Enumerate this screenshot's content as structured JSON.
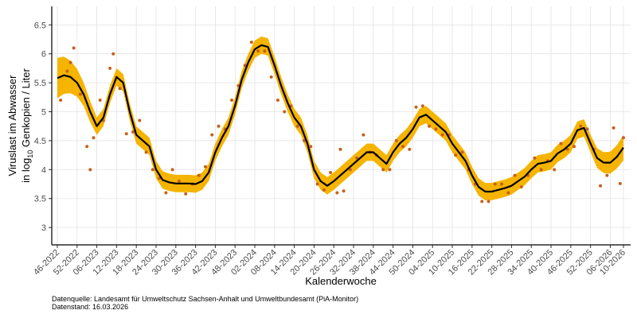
{
  "chart_data": {
    "type": "line",
    "x_label": "Kalenderwoche",
    "y_label": {
      "line1": "Viruslast im Abwasser",
      "line2_pre": "in  log",
      "line2_sub": "10",
      "line2_post": " Genkopien / Liter"
    },
    "xlim": [
      -1.69,
      174.18
    ],
    "ylim": [
      2.7,
      6.82
    ],
    "xticks": [
      {
        "value": 0,
        "label": "46-2022"
      },
      {
        "value": 6,
        "label": "52-2022"
      },
      {
        "value": 12,
        "label": "06-2023"
      },
      {
        "value": 18,
        "label": "12-2023"
      },
      {
        "value": 24,
        "label": "18-2023"
      },
      {
        "value": 30,
        "label": "24-2023"
      },
      {
        "value": 36,
        "label": "30-2023"
      },
      {
        "value": 42,
        "label": "36-2023"
      },
      {
        "value": 48,
        "label": "42-2023"
      },
      {
        "value": 54,
        "label": "48-2023"
      },
      {
        "value": 60,
        "label": "02-2024"
      },
      {
        "value": 66,
        "label": "08-2024"
      },
      {
        "value": 72,
        "label": "14-2024"
      },
      {
        "value": 78,
        "label": "20-2024"
      },
      {
        "value": 84,
        "label": "26-2024"
      },
      {
        "value": 90,
        "label": "32-2024"
      },
      {
        "value": 96,
        "label": "38-2024"
      },
      {
        "value": 102,
        "label": "44-2024"
      },
      {
        "value": 108,
        "label": "50-2024"
      },
      {
        "value": 114,
        "label": "04-2025"
      },
      {
        "value": 120,
        "label": "10-2025"
      },
      {
        "value": 126,
        "label": "16-2025"
      },
      {
        "value": 132,
        "label": "22-2025"
      },
      {
        "value": 138,
        "label": "28-2025"
      },
      {
        "value": 144,
        "label": "34-2025"
      },
      {
        "value": 150,
        "label": "40-2025"
      },
      {
        "value": 156,
        "label": "46-2025"
      },
      {
        "value": 162,
        "label": "52-2025"
      },
      {
        "value": 168,
        "label": "06-2026"
      },
      {
        "value": 172,
        "label": "10-2026"
      }
    ],
    "yticks": [
      3,
      3.5,
      4,
      4.5,
      5,
      5.5,
      6,
      6.5
    ],
    "grid": true,
    "fit": {
      "color": "#000000",
      "x": [
        0,
        2,
        4,
        6,
        8,
        10,
        12,
        14,
        16,
        18,
        20,
        22,
        24,
        26,
        28,
        30,
        32,
        34,
        36,
        38,
        40,
        42,
        44,
        46,
        48,
        50,
        52,
        54,
        56,
        58,
        60,
        62,
        64,
        66,
        68,
        70,
        72,
        74,
        76,
        78,
        80,
        82,
        84,
        86,
        88,
        90,
        92,
        94,
        96,
        98,
        100,
        102,
        104,
        106,
        108,
        110,
        112,
        114,
        116,
        118,
        120,
        122,
        124,
        126,
        128,
        130,
        132,
        134,
        136,
        138,
        140,
        142,
        144,
        146,
        148,
        150,
        152,
        154,
        156,
        158,
        160,
        162,
        164,
        166,
        168,
        170,
        172
      ],
      "values": [
        5.58,
        5.63,
        5.6,
        5.5,
        5.3,
        5.0,
        4.75,
        4.9,
        5.3,
        5.6,
        5.5,
        5.0,
        4.6,
        4.5,
        4.4,
        4.0,
        3.82,
        3.78,
        3.76,
        3.76,
        3.76,
        3.75,
        3.8,
        3.95,
        4.3,
        4.55,
        4.75,
        5.1,
        5.55,
        5.85,
        6.08,
        6.15,
        6.12,
        5.8,
        5.45,
        5.15,
        4.9,
        4.75,
        4.45,
        4.0,
        3.8,
        3.72,
        3.8,
        3.9,
        4.0,
        4.1,
        4.2,
        4.3,
        4.3,
        4.2,
        4.1,
        4.3,
        4.45,
        4.55,
        4.7,
        4.9,
        4.95,
        4.85,
        4.75,
        4.65,
        4.45,
        4.3,
        4.15,
        3.9,
        3.7,
        3.62,
        3.62,
        3.65,
        3.68,
        3.72,
        3.8,
        3.88,
        4.0,
        4.1,
        4.12,
        4.15,
        4.28,
        4.35,
        4.45,
        4.68,
        4.72,
        4.45,
        4.2,
        4.12,
        4.12,
        4.22,
        4.38
      ]
    },
    "band": {
      "color": "#f5b400",
      "upper": [
        5.93,
        5.95,
        5.88,
        5.74,
        5.5,
        5.18,
        4.9,
        5.05,
        5.45,
        5.75,
        5.65,
        5.15,
        4.75,
        4.65,
        4.55,
        4.15,
        3.97,
        3.93,
        3.91,
        3.91,
        3.91,
        3.9,
        3.95,
        4.1,
        4.45,
        4.7,
        4.9,
        5.25,
        5.7,
        6.0,
        6.23,
        6.3,
        6.27,
        5.95,
        5.6,
        5.3,
        5.05,
        4.9,
        4.6,
        4.15,
        3.95,
        3.87,
        3.95,
        4.05,
        4.15,
        4.25,
        4.35,
        4.45,
        4.45,
        4.35,
        4.25,
        4.45,
        4.6,
        4.7,
        4.85,
        5.05,
        5.1,
        5.0,
        4.9,
        4.8,
        4.6,
        4.45,
        4.3,
        4.05,
        3.85,
        3.77,
        3.77,
        3.8,
        3.83,
        3.87,
        3.95,
        4.03,
        4.15,
        4.25,
        4.27,
        4.3,
        4.43,
        4.5,
        4.6,
        4.83,
        4.87,
        4.6,
        4.37,
        4.3,
        4.31,
        4.42,
        4.6
      ],
      "lower": [
        5.23,
        5.31,
        5.32,
        5.26,
        5.1,
        4.82,
        4.6,
        4.75,
        5.15,
        5.45,
        5.35,
        4.85,
        4.45,
        4.35,
        4.25,
        3.85,
        3.67,
        3.63,
        3.61,
        3.61,
        3.61,
        3.6,
        3.65,
        3.8,
        4.15,
        4.4,
        4.6,
        4.95,
        5.4,
        5.7,
        5.93,
        6.0,
        5.97,
        5.65,
        5.3,
        5.0,
        4.75,
        4.6,
        4.3,
        3.85,
        3.65,
        3.57,
        3.65,
        3.75,
        3.85,
        3.95,
        4.05,
        4.15,
        4.15,
        4.05,
        3.95,
        4.15,
        4.3,
        4.4,
        4.55,
        4.75,
        4.8,
        4.7,
        4.6,
        4.5,
        4.3,
        4.15,
        4.0,
        3.75,
        3.55,
        3.47,
        3.47,
        3.5,
        3.53,
        3.57,
        3.65,
        3.73,
        3.85,
        3.95,
        3.97,
        4.0,
        4.13,
        4.2,
        4.3,
        4.53,
        4.57,
        4.3,
        4.03,
        3.94,
        3.93,
        4.02,
        4.16
      ]
    },
    "points": {
      "color": "#c8601a",
      "x": [
        1,
        3,
        4,
        5,
        7,
        9,
        10,
        11,
        13,
        14,
        16,
        17,
        19,
        21,
        23,
        25,
        27,
        29,
        31,
        33,
        35,
        37,
        39,
        41,
        43,
        45,
        47,
        49,
        51,
        53,
        55,
        57,
        59,
        61,
        63,
        65,
        67,
        69,
        71,
        73,
        75,
        77,
        79,
        81,
        83,
        85,
        86,
        87,
        89,
        91,
        93,
        95,
        97,
        99,
        101,
        103,
        105,
        107,
        109,
        111,
        113,
        115,
        117,
        119,
        121,
        123,
        125,
        127,
        129,
        131,
        133,
        135,
        137,
        139,
        141,
        143,
        145,
        147,
        149,
        151,
        153,
        155,
        157,
        159,
        161,
        163,
        165,
        167,
        169,
        171,
        172
      ],
      "values": [
        5.2,
        5.7,
        5.85,
        6.1,
        5.3,
        4.4,
        4.0,
        4.55,
        5.2,
        4.85,
        5.75,
        6.0,
        5.4,
        4.62,
        4.65,
        4.85,
        4.3,
        4.0,
        3.85,
        3.6,
        4.0,
        3.8,
        3.58,
        3.75,
        3.9,
        4.05,
        4.6,
        4.75,
        4.7,
        5.2,
        5.45,
        5.8,
        6.2,
        6.05,
        6.05,
        5.6,
        5.2,
        5.0,
        5.1,
        4.75,
        4.5,
        4.4,
        3.75,
        3.65,
        3.95,
        3.6,
        4.35,
        3.63,
        4.0,
        4.2,
        4.6,
        4.3,
        4.25,
        4.0,
        4.0,
        4.5,
        4.4,
        4.35,
        5.08,
        5.1,
        4.75,
        4.7,
        4.6,
        4.6,
        4.25,
        4.3,
        4.0,
        3.75,
        3.45,
        3.45,
        3.75,
        3.75,
        3.6,
        3.9,
        3.7,
        3.9,
        4.2,
        4.0,
        4.15,
        4.0,
        4.45,
        4.35,
        4.4,
        4.75,
        4.7,
        4.35,
        3.72,
        3.9,
        4.72,
        3.76,
        4.55
      ]
    },
    "footnotes": [
      "Datenquelle: Landesamt für Umweltschutz Sachsen-Anhalt und Umweltbundesamt (PiA-Monitor)",
      "Datenstand: 16.03.2026"
    ]
  }
}
